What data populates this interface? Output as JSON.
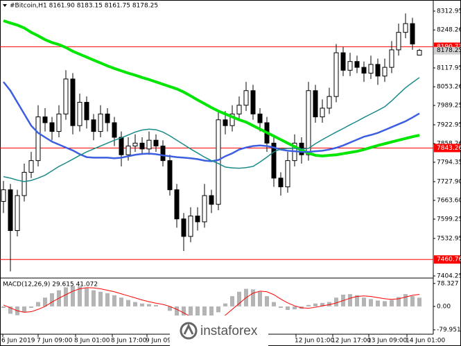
{
  "chart_data": {
    "type": "candlestick",
    "title": "#Bitcoin,H1 8161.90 8183.15 8161.75 8178.25",
    "ylim": [
      7399.5,
      8339.1
    ],
    "yticks": [
      8312.95,
      8248.26,
      8117.95,
      8053.26,
      7989.25,
      7922.95,
      7858.26,
      7794.35,
      {
        "value": 7727.9,
        "label": "7727.90"
      },
      {
        "value": 7663.6,
        "label": "7663.60"
      },
      7599.25,
      7532.95,
      7404.25
    ],
    "x_labels": [
      "6 Jun 2019",
      "7 Jun 09:00",
      "8 Jun 01:00",
      "8 Jun 17:00",
      "9 Jun 09",
      "12 Jun 01:00",
      "12 Jun 17:00",
      "13 Jun 09:00",
      "14 Jun 01:00"
    ],
    "up_color": "#ffffff",
    "down_color": "#000000",
    "ohlc": [
      [
        7660,
        7730,
        7620,
        7700
      ],
      [
        7700,
        7720,
        7420,
        7560
      ],
      [
        7560,
        7700,
        7540,
        7680
      ],
      [
        7680,
        7790,
        7660,
        7760
      ],
      [
        7760,
        7830,
        7740,
        7800
      ],
      [
        7800,
        7990,
        7780,
        7950
      ],
      [
        7950,
        7980,
        7900,
        7930
      ],
      [
        7930,
        7950,
        7870,
        7900
      ],
      [
        7900,
        7990,
        7880,
        7960
      ],
      [
        7960,
        8110,
        7940,
        8080
      ],
      [
        8080,
        8100,
        7890,
        7920
      ],
      [
        7920,
        8030,
        7900,
        8000
      ],
      [
        8000,
        8020,
        7910,
        7940
      ],
      [
        7940,
        7960,
        7870,
        7900
      ],
      [
        7900,
        7990,
        7880,
        7960
      ],
      [
        7960,
        7980,
        7900,
        7930
      ],
      [
        7930,
        7950,
        7850,
        7880
      ],
      [
        7880,
        7900,
        7780,
        7820
      ],
      [
        7820,
        7880,
        7800,
        7850
      ],
      [
        7850,
        7890,
        7830,
        7860
      ],
      [
        7860,
        7880,
        7820,
        7840
      ],
      [
        7840,
        7900,
        7820,
        7870
      ],
      [
        7870,
        7890,
        7830,
        7850
      ],
      [
        7850,
        7870,
        7780,
        7800
      ],
      [
        7800,
        7820,
        7680,
        7700
      ],
      [
        7700,
        7720,
        7570,
        7600
      ],
      [
        7600,
        7620,
        7490,
        7540
      ],
      [
        7540,
        7640,
        7520,
        7610
      ],
      [
        7610,
        7640,
        7560,
        7590
      ],
      [
        7590,
        7720,
        7570,
        7680
      ],
      [
        7680,
        7700,
        7620,
        7650
      ],
      [
        7650,
        7970,
        7630,
        7940
      ],
      [
        7940,
        7970,
        7890,
        7920
      ],
      [
        7920,
        7990,
        7900,
        7960
      ],
      [
        7960,
        8020,
        7940,
        7990
      ],
      [
        7990,
        8070,
        7970,
        8040
      ],
      [
        8040,
        8060,
        7940,
        7960
      ],
      [
        7960,
        7980,
        7900,
        7930
      ],
      [
        7930,
        7950,
        7830,
        7860
      ],
      [
        7860,
        7880,
        7710,
        7740
      ],
      [
        7740,
        7760,
        7680,
        7710
      ],
      [
        7710,
        7830,
        7690,
        7800
      ],
      [
        7800,
        7890,
        7780,
        7860
      ],
      [
        7860,
        7880,
        7790,
        7820
      ],
      [
        7820,
        8070,
        7800,
        8040
      ],
      [
        8040,
        8060,
        7930,
        7950
      ],
      [
        7950,
        8010,
        7930,
        7980
      ],
      [
        7980,
        8050,
        7960,
        8020
      ],
      [
        8020,
        8200,
        8000,
        8170
      ],
      [
        8170,
        8190,
        8090,
        8110
      ],
      [
        8110,
        8170,
        8090,
        8140
      ],
      [
        8140,
        8160,
        8100,
        8120
      ],
      [
        8120,
        8140,
        8070,
        8100
      ],
      [
        8100,
        8160,
        8080,
        8130
      ],
      [
        8130,
        8150,
        8060,
        8090
      ],
      [
        8090,
        8150,
        8070,
        8120
      ],
      [
        8120,
        8210,
        8100,
        8180
      ],
      [
        8180,
        8270,
        8160,
        8240
      ],
      [
        8240,
        8305,
        8220,
        8270
      ],
      [
        8270,
        8290,
        8180,
        8200
      ],
      [
        8161.9,
        8183.15,
        8161.75,
        8178.25
      ]
    ],
    "moving_averages": [
      {
        "color": "#00e600",
        "line_width": 4,
        "values": [
          8280,
          8272,
          8265,
          8255,
          8240,
          8228,
          8215,
          8205,
          8198,
          8188,
          8175,
          8165,
          8155,
          8145,
          8135,
          8125,
          8116,
          8108,
          8100,
          8093,
          8085,
          8078,
          8070,
          8062,
          8054,
          8046,
          8035,
          8022,
          8008,
          7995,
          7982,
          7970,
          7960,
          7950,
          7940,
          7932,
          7920,
          7908,
          7896,
          7884,
          7872,
          7860,
          7848,
          7836,
          7826,
          7818,
          7816,
          7818,
          7820,
          7824,
          7828,
          7832,
          7838,
          7845,
          7852,
          7858,
          7864,
          7870,
          7876,
          7882,
          7887
        ]
      },
      {
        "color": "#3b5fe0",
        "line_width": 2.5,
        "values": [
          8070,
          8040,
          8000,
          7960,
          7920,
          7895,
          7880,
          7865,
          7855,
          7845,
          7835,
          7822,
          7812,
          7810,
          7810,
          7810,
          7808,
          7810,
          7815,
          7820,
          7823,
          7824,
          7822,
          7818,
          7815,
          7812,
          7810,
          7808,
          7805,
          7800,
          7798,
          7802,
          7815,
          7825,
          7838,
          7845,
          7850,
          7852,
          7850,
          7845,
          7838,
          7834,
          7832,
          7830,
          7830,
          7832,
          7834,
          7838,
          7844,
          7852,
          7862,
          7872,
          7882,
          7888,
          7895,
          7905,
          7915,
          7925,
          7935,
          7948,
          7962
        ]
      },
      {
        "color": "#1a8a8a",
        "line_width": 1.5,
        "values": [
          7745,
          7740,
          7733,
          7728,
          7732,
          7740,
          7750,
          7765,
          7780,
          7792,
          7805,
          7818,
          7830,
          7840,
          7850,
          7860,
          7870,
          7878,
          7888,
          7898,
          7905,
          7908,
          7906,
          7898,
          7885,
          7870,
          7855,
          7840,
          7826,
          7812,
          7800,
          7790,
          7778,
          7775,
          7774,
          7776,
          7780,
          7795,
          7812,
          7830,
          7840,
          7842,
          7842,
          7840,
          7842,
          7858,
          7872,
          7885,
          7898,
          7910,
          7923,
          7935,
          7948,
          7960,
          7972,
          7985,
          8005,
          8028,
          8050,
          8068,
          8085
        ]
      }
    ],
    "levels": [
      {
        "value": 8190.73,
        "color": "#ff0000"
      },
      {
        "value": 7843.26,
        "color": "#ff0000"
      },
      {
        "value": 7460.76,
        "color": "#ff0000"
      }
    ],
    "macd": {
      "type": "bar",
      "label": "MACD(12,26,9) 29.615 41.072",
      "ylim": [
        -90,
        92
      ],
      "yticks": [
        78.327,
        {
          "value": 0,
          "label": "0.00"
        },
        -79.951
      ],
      "color": "#b4b4b4",
      "values": [
        -5,
        -25,
        -30,
        -20,
        -5,
        15,
        30,
        45,
        55,
        65,
        70,
        68,
        62,
        55,
        50,
        45,
        38,
        30,
        22,
        15,
        10,
        8,
        5,
        0,
        -15,
        -35,
        -50,
        -58,
        -60,
        -55,
        -50,
        -20,
        10,
        35,
        50,
        60,
        58,
        50,
        35,
        15,
        -5,
        -12,
        -10,
        -8,
        5,
        10,
        12,
        15,
        30,
        40,
        42,
        38,
        30,
        25,
        20,
        18,
        22,
        32,
        42,
        35,
        29.615
      ],
      "signal": {
        "color": "#ff0000",
        "values": [
          5,
          -5,
          -15,
          -20,
          -18,
          -10,
          0,
          15,
          28,
          40,
          52,
          60,
          64,
          63,
          60,
          55,
          50,
          43,
          36,
          29,
          22,
          16,
          11,
          7,
          0,
          -10,
          -22,
          -35,
          -45,
          -52,
          -55,
          -45,
          -30,
          -10,
          10,
          30,
          45,
          52,
          50,
          40,
          25,
          12,
          2,
          -5,
          -6,
          -3,
          2,
          6,
          12,
          20,
          28,
          34,
          36,
          34,
          30,
          26,
          24,
          26,
          32,
          38,
          41.072
        ]
      }
    },
    "watermark": "instaforex"
  }
}
